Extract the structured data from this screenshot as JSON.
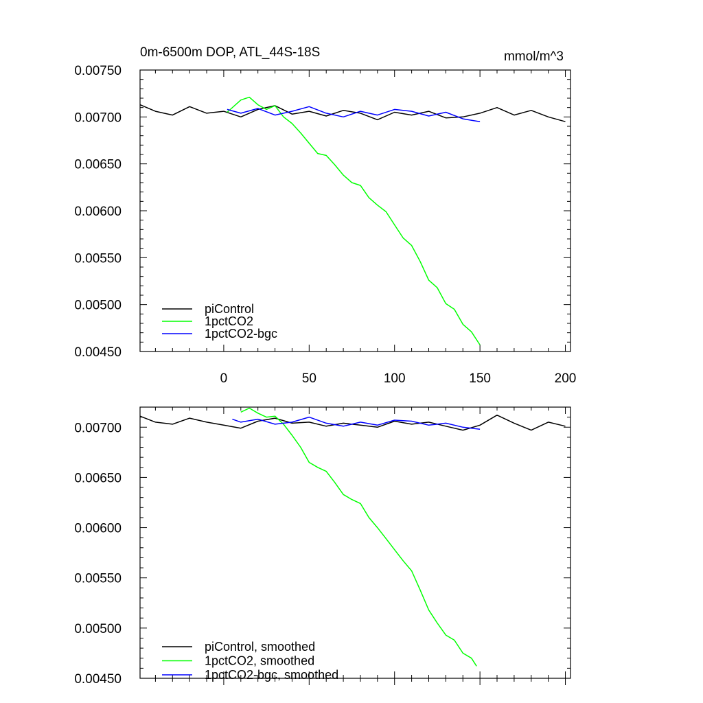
{
  "chart_data": [
    {
      "type": "line",
      "title": "0m-6500m DOP, ATL_44S-18S",
      "units": "mmol/m^3",
      "xlim": [
        -49,
        203
      ],
      "ylim": [
        0.0045,
        0.0075
      ],
      "x_ticks": [
        0,
        50,
        100,
        150,
        200
      ],
      "x_tick_labels": [
        "0",
        "50",
        "100",
        "150",
        "200"
      ],
      "y_ticks": [
        0.0045,
        0.005,
        0.0055,
        0.006,
        0.0065,
        0.007,
        0.0075
      ],
      "y_tick_labels": [
        "0.00450",
        "0.00500",
        "0.00550",
        "0.00600",
        "0.00650",
        "0.00700",
        "0.00750"
      ],
      "grid": false,
      "legend_position": "bottom-left",
      "series": [
        {
          "name": "piControl",
          "color": "#000000",
          "x": [
            -49,
            -40,
            -30,
            -20,
            -10,
            0,
            10,
            20,
            30,
            40,
            50,
            60,
            70,
            80,
            90,
            100,
            110,
            120,
            130,
            140,
            150,
            160,
            170,
            180,
            190,
            200
          ],
          "y": [
            0.00713,
            0.00706,
            0.00702,
            0.00711,
            0.00704,
            0.00706,
            0.007,
            0.00708,
            0.00712,
            0.00703,
            0.00706,
            0.00701,
            0.00707,
            0.00704,
            0.00697,
            0.00705,
            0.00702,
            0.00706,
            0.00699,
            0.007,
            0.00704,
            0.0071,
            0.00702,
            0.00707,
            0.007,
            0.00695
          ]
        },
        {
          "name": "1pctCO2",
          "color": "#00ff00",
          "x": [
            2,
            10,
            15,
            20,
            25,
            30,
            35,
            40,
            45,
            50,
            55,
            60,
            65,
            70,
            75,
            80,
            85,
            90,
            95,
            100,
            105,
            110,
            115,
            120,
            125,
            130,
            135,
            140,
            145,
            150
          ],
          "y": [
            0.00705,
            0.00718,
            0.00721,
            0.00713,
            0.00708,
            0.00712,
            0.007,
            0.00693,
            0.00683,
            0.00672,
            0.00661,
            0.00659,
            0.00649,
            0.00638,
            0.0063,
            0.00627,
            0.00614,
            0.00606,
            0.00599,
            0.00585,
            0.00571,
            0.00563,
            0.00546,
            0.00526,
            0.00518,
            0.00501,
            0.00495,
            0.00479,
            0.00471,
            0.00457
          ]
        },
        {
          "name": "1pctCO2-bgc",
          "color": "#0000ff",
          "x": [
            2,
            10,
            20,
            30,
            40,
            50,
            60,
            70,
            80,
            90,
            100,
            110,
            120,
            130,
            140,
            150
          ],
          "y": [
            0.00708,
            0.00704,
            0.00709,
            0.00702,
            0.00706,
            0.00711,
            0.00704,
            0.007,
            0.00706,
            0.00702,
            0.00708,
            0.00706,
            0.00701,
            0.00705,
            0.00698,
            0.00695
          ]
        }
      ]
    },
    {
      "type": "line",
      "xlim": [
        -49,
        203
      ],
      "ylim": [
        0.0045,
        0.0072
      ],
      "x_ticks": [
        0,
        50,
        100,
        150,
        200
      ],
      "y_ticks": [
        0.0045,
        0.005,
        0.0055,
        0.006,
        0.0065,
        0.007
      ],
      "y_tick_labels": [
        "0.00450",
        "0.00500",
        "0.00550",
        "0.00600",
        "0.00650",
        "0.00700"
      ],
      "grid": false,
      "legend_position": "bottom-left",
      "series": [
        {
          "name": "piControl, smoothed",
          "color": "#000000",
          "x": [
            -49,
            -40,
            -30,
            -20,
            -10,
            0,
            10,
            20,
            30,
            40,
            50,
            60,
            70,
            80,
            90,
            100,
            110,
            120,
            130,
            140,
            150,
            160,
            170,
            180,
            190,
            200
          ],
          "y": [
            0.00711,
            0.00705,
            0.00703,
            0.00709,
            0.00705,
            0.00702,
            0.00699,
            0.00706,
            0.00709,
            0.00704,
            0.00705,
            0.00701,
            0.00704,
            0.00702,
            0.007,
            0.00706,
            0.00703,
            0.00705,
            0.00701,
            0.00697,
            0.00702,
            0.00712,
            0.00704,
            0.00697,
            0.00705,
            0.00701
          ]
        },
        {
          "name": "1pctCO2, smoothed",
          "color": "#00ff00",
          "x": [
            10,
            15,
            20,
            25,
            30,
            35,
            40,
            45,
            50,
            55,
            60,
            65,
            70,
            75,
            80,
            85,
            90,
            95,
            100,
            105,
            110,
            115,
            120,
            125,
            130,
            135,
            140,
            145,
            148
          ],
          "y": [
            0.00715,
            0.00719,
            0.00714,
            0.0071,
            0.00711,
            0.00703,
            0.00692,
            0.0068,
            0.00665,
            0.0066,
            0.00656,
            0.00645,
            0.00633,
            0.00628,
            0.00624,
            0.0061,
            0.006,
            0.00589,
            0.00578,
            0.00567,
            0.00557,
            0.00538,
            0.00518,
            0.00505,
            0.00493,
            0.00488,
            0.00475,
            0.0047,
            0.00462
          ]
        },
        {
          "name": "1pctCO2-bgc, smoothed",
          "color": "#0000ff",
          "x": [
            5,
            10,
            20,
            30,
            40,
            50,
            60,
            70,
            80,
            90,
            100,
            110,
            120,
            130,
            140,
            150
          ],
          "y": [
            0.00708,
            0.00705,
            0.00708,
            0.00703,
            0.00705,
            0.0071,
            0.00704,
            0.00701,
            0.00705,
            0.00702,
            0.00707,
            0.00706,
            0.00702,
            0.00704,
            0.007,
            0.00698
          ]
        }
      ]
    }
  ]
}
